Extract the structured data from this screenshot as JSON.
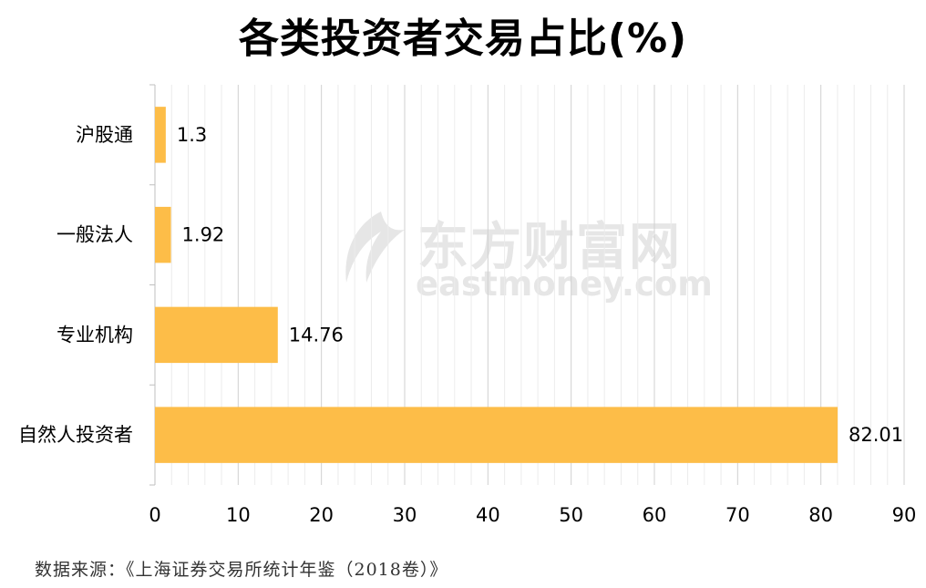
{
  "title": "各类投资者交易占比(%)",
  "watermark": {
    "brand": "东方财富网",
    "domain": "eastmoney.com"
  },
  "footer": "数据来源：《上海证券交易所统计年鉴（2018卷）》",
  "colors": {
    "bar": "#fdbd48",
    "grid": "#d9d9d9",
    "text": "#000000"
  },
  "chart_data": {
    "type": "bar",
    "orientation": "horizontal",
    "title": "各类投资者交易占比(%)",
    "categories": [
      "沪股通",
      "一般法人",
      "专业机构",
      "自然人投资者"
    ],
    "values": [
      1.3,
      1.92,
      14.76,
      82.01
    ],
    "value_labels": [
      "1.3",
      "1.92",
      "14.76",
      "82.01"
    ],
    "xlim": [
      0,
      90
    ],
    "x_ticks": [
      0,
      10,
      20,
      30,
      40,
      50,
      60,
      70,
      80,
      90
    ],
    "grid": true,
    "legend": "none"
  }
}
